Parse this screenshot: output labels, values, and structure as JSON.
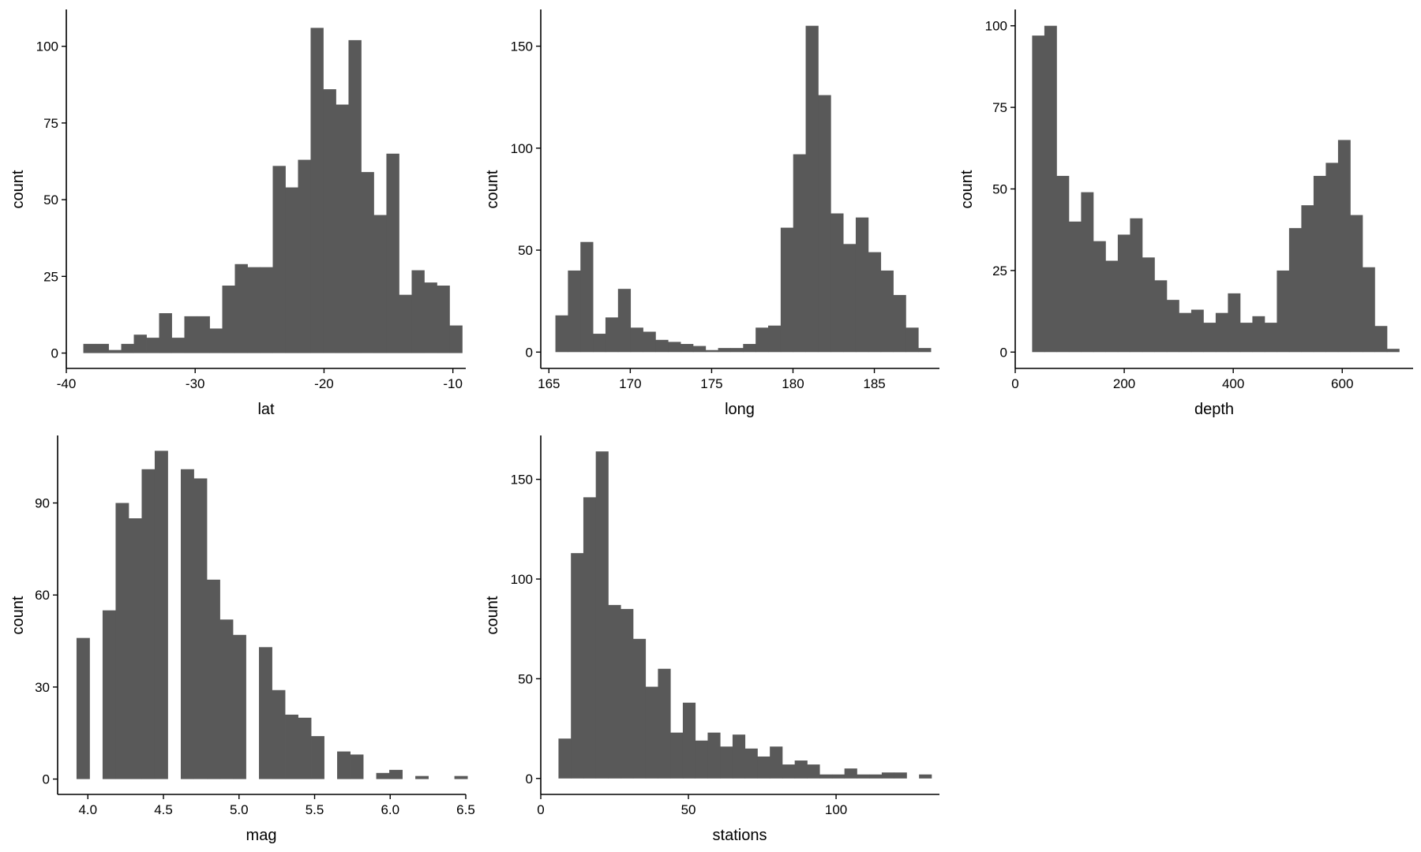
{
  "chart_data": [
    {
      "type": "histogram",
      "xlabel": "lat",
      "ylabel": "count",
      "x_range": [
        -40.0,
        -9.0
      ],
      "y_range": [
        -5,
        112
      ],
      "x_ticks": [
        -40,
        -30,
        -20,
        -10
      ],
      "x_tick_labels": [
        "-40",
        "-30",
        "-20",
        "-10"
      ],
      "y_ticks": [
        0,
        25,
        50,
        75,
        100
      ],
      "y_tick_labels": [
        "0",
        "25",
        "50",
        "75",
        "100"
      ],
      "bins": {
        "start": -38.68,
        "width": 0.98,
        "counts": [
          3,
          3,
          1,
          3,
          6,
          5,
          13,
          5,
          12,
          12,
          8,
          22,
          29,
          28,
          28,
          61,
          54,
          63,
          106,
          86,
          81,
          102,
          59,
          45,
          65,
          19,
          27,
          23,
          22,
          9
        ]
      }
    },
    {
      "type": "histogram",
      "xlabel": "long",
      "ylabel": "count",
      "x_range": [
        164.5,
        189.0
      ],
      "y_range": [
        -8,
        168
      ],
      "x_ticks": [
        165,
        170,
        175,
        180,
        185
      ],
      "x_tick_labels": [
        "165",
        "170",
        "175",
        "180",
        "185"
      ],
      "y_ticks": [
        0,
        50,
        100,
        150
      ],
      "y_tick_labels": [
        "0",
        "50",
        "100",
        "150"
      ],
      "bins": {
        "start": 165.4,
        "width": 0.769,
        "counts": [
          18,
          40,
          54,
          9,
          17,
          31,
          12,
          10,
          6,
          5,
          4,
          3,
          1,
          2,
          2,
          4,
          12,
          13,
          61,
          97,
          160,
          126,
          68,
          53,
          66,
          49,
          40,
          28,
          12,
          2
        ]
      }
    },
    {
      "type": "histogram",
      "xlabel": "depth",
      "ylabel": "count",
      "x_range": [
        0,
        730
      ],
      "y_range": [
        -5,
        105
      ],
      "x_ticks": [
        0,
        200,
        400,
        600
      ],
      "x_tick_labels": [
        "0",
        "200",
        "400",
        "600"
      ],
      "y_ticks": [
        0,
        25,
        50,
        75,
        100
      ],
      "y_tick_labels": [
        "0",
        "25",
        "50",
        "75",
        "100"
      ],
      "bins": {
        "start": 31.0,
        "width": 22.45,
        "counts": [
          97,
          100,
          54,
          40,
          49,
          34,
          28,
          36,
          41,
          29,
          22,
          16,
          12,
          13,
          9,
          12,
          18,
          9,
          11,
          9,
          25,
          38,
          45,
          54,
          58,
          65,
          42,
          26,
          8,
          1
        ]
      }
    },
    {
      "type": "histogram",
      "xlabel": "mag",
      "ylabel": "count",
      "x_range": [
        3.8,
        6.5
      ],
      "y_range": [
        -5,
        112
      ],
      "x_ticks": [
        4.0,
        4.5,
        5.0,
        5.5,
        6.0,
        6.5
      ],
      "x_tick_labels": [
        "4.0",
        "4.5",
        "5.0",
        "5.5",
        "6.0",
        "6.5"
      ],
      "y_ticks": [
        0,
        30,
        60,
        90
      ],
      "y_tick_labels": [
        "0",
        "30",
        "60",
        "90"
      ],
      "bins": {
        "start": 3.925,
        "width": 0.0862,
        "counts": [
          46,
          0,
          55,
          90,
          85,
          101,
          107,
          0,
          101,
          98,
          65,
          52,
          47,
          0,
          43,
          29,
          21,
          20,
          14,
          0,
          9,
          8,
          0,
          2,
          3,
          0,
          1,
          0,
          0,
          1
        ]
      }
    },
    {
      "type": "histogram",
      "xlabel": "stations",
      "ylabel": "count",
      "x_range": [
        0,
        135
      ],
      "y_range": [
        -8,
        172
      ],
      "x_ticks": [
        0,
        50,
        100
      ],
      "x_tick_labels": [
        "0",
        "50",
        "100"
      ],
      "y_ticks": [
        0,
        50,
        100,
        150
      ],
      "y_tick_labels": [
        "0",
        "50",
        "100",
        "150"
      ],
      "bins": {
        "start": 6.0,
        "width": 4.21,
        "counts": [
          20,
          113,
          141,
          164,
          87,
          85,
          70,
          46,
          55,
          23,
          38,
          19,
          23,
          16,
          22,
          15,
          11,
          16,
          7,
          9,
          7,
          2,
          2,
          5,
          2,
          2,
          3,
          3,
          0,
          2
        ]
      }
    }
  ],
  "colors": {
    "bar": "#595959",
    "axis": "#000000",
    "background": "#ffffff"
  }
}
